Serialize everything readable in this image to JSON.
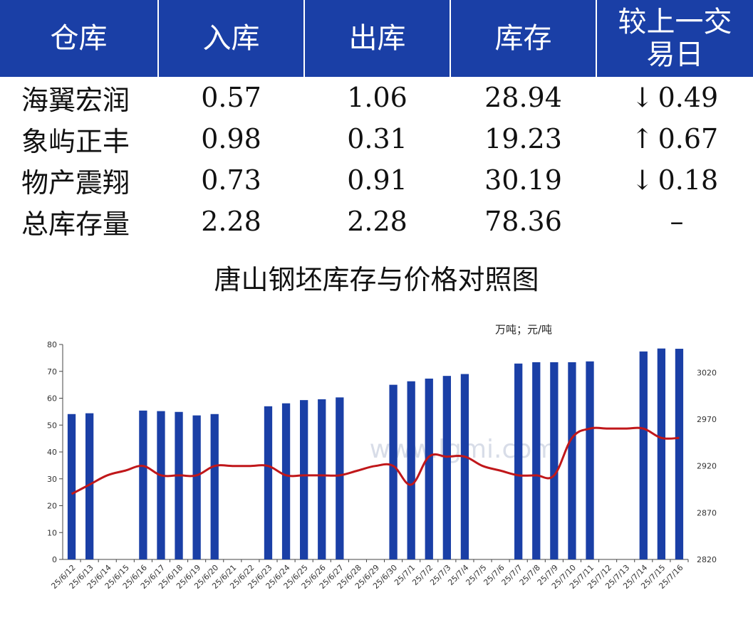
{
  "table": {
    "headers": [
      "仓库",
      "入库",
      "出库",
      "库存",
      "较上一交易日"
    ],
    "rows": [
      {
        "name": "海翼宏润",
        "in": "0.57",
        "out": "1.06",
        "stock": "28.94",
        "change": "0.49",
        "direction": "down",
        "arrow": "↓"
      },
      {
        "name": "象屿正丰",
        "in": "0.98",
        "out": "0.31",
        "stock": "19.23",
        "change": "0.67",
        "direction": "up",
        "arrow": "↑"
      },
      {
        "name": "物产震翔",
        "in": "0.73",
        "out": "0.91",
        "stock": "30.19",
        "change": "0.18",
        "direction": "down",
        "arrow": "↓"
      },
      {
        "name": "总库存量",
        "in": "2.28",
        "out": "2.28",
        "stock": "78.36",
        "change": "–",
        "direction": "none",
        "arrow": ""
      }
    ],
    "colors": {
      "header_bg": "#1a3fa6",
      "up": "#e01010",
      "down": "#108010"
    }
  },
  "chart_data": {
    "type": "bar",
    "title": "唐山钢坯库存与价格对照图",
    "units_label": "万吨；元/吨",
    "categories": [
      "25/6/12",
      "25/6/13",
      "25/6/14",
      "25/6/15",
      "25/6/16",
      "25/6/17",
      "25/6/18",
      "25/6/19",
      "25/6/20",
      "25/6/21",
      "25/6/22",
      "25/6/23",
      "25/6/24",
      "25/6/25",
      "25/6/26",
      "25/6/27",
      "25/6/28",
      "25/6/29",
      "25/6/30",
      "25/7/1",
      "25/7/2",
      "25/7/3",
      "25/7/4",
      "25/7/5",
      "25/7/6",
      "25/7/7",
      "25/7/8",
      "25/7/9",
      "25/7/10",
      "25/7/11",
      "25/7/12",
      "25/7/13",
      "25/7/14",
      "25/7/15",
      "25/7/16"
    ],
    "series": [
      {
        "name": "",
        "type": "bar",
        "axis": "left",
        "color": "#1a3fa6",
        "values": [
          54.1,
          54.4,
          null,
          null,
          55.4,
          55.2,
          54.9,
          53.6,
          54.1,
          null,
          null,
          57.0,
          58.1,
          59.3,
          59.6,
          60.3,
          null,
          null,
          65.0,
          66.3,
          67.3,
          68.3,
          69.0,
          null,
          null,
          72.9,
          73.4,
          73.4,
          73.4,
          73.7,
          null,
          null,
          77.4,
          78.5,
          78.4
        ]
      },
      {
        "name": "",
        "type": "line",
        "axis": "right",
        "color": "#c0171a",
        "values": [
          2890,
          2900,
          2910,
          2915,
          2920,
          2910,
          2910,
          2910,
          2920,
          2920,
          2920,
          2920,
          2910,
          2910,
          2910,
          2910,
          2915,
          2920,
          2920,
          2900,
          2930,
          2930,
          2930,
          2920,
          2915,
          2910,
          2910,
          2910,
          2950,
          2960,
          2960,
          2960,
          2960,
          2950,
          2950
        ]
      }
    ],
    "y_left": {
      "min": 0,
      "max": 80,
      "ticks": [
        0,
        10,
        20,
        30,
        40,
        50,
        60,
        70,
        80
      ]
    },
    "y_right": {
      "min": 2820,
      "max": 3050,
      "ticks": [
        2820,
        2870,
        2920,
        2970,
        3020
      ]
    },
    "grid": false,
    "watermark": "www.lgmi.com"
  }
}
